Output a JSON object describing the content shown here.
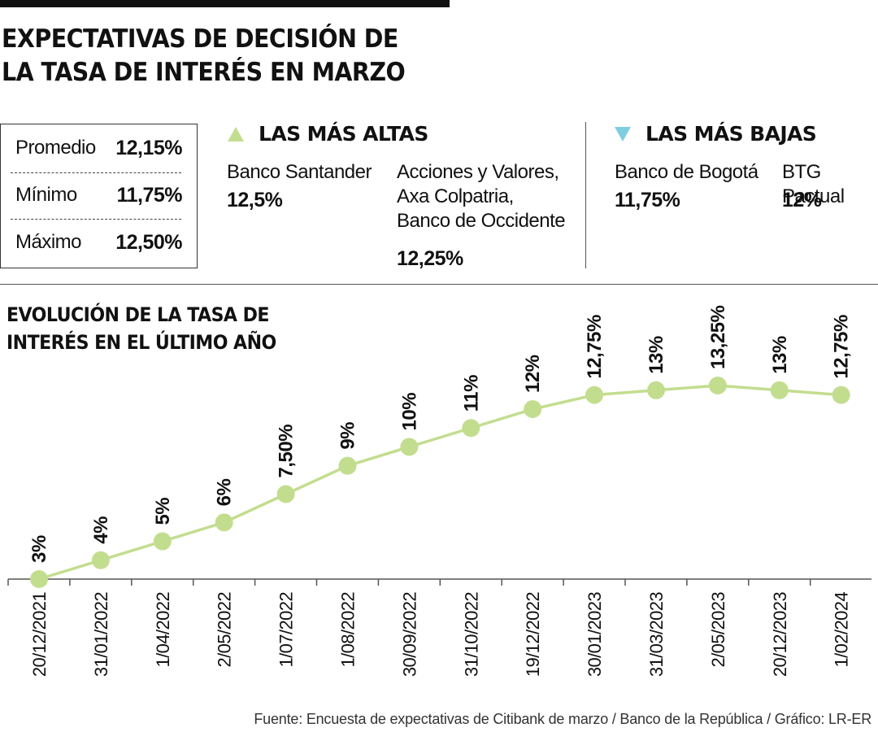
{
  "header": {
    "title_line1": "EXPECTATIVAS DE DECISIÓN DE",
    "title_line2": "LA TASA DE INTERÉS EN MARZO"
  },
  "stats": [
    {
      "label": "Promedio",
      "value": "12,15%"
    },
    {
      "label": "Mínimo",
      "value": "11,75%"
    },
    {
      "label": "Máximo",
      "value": "12,50%"
    }
  ],
  "highest": {
    "heading": "LAS MÁS ALTAS",
    "entries": [
      {
        "name_lines": [
          "Banco Santander"
        ],
        "value": "12,5%"
      },
      {
        "name_lines": [
          "Acciones y Valores,",
          "Axa Colpatria,",
          "Banco de Occidente"
        ],
        "value": "12,25%"
      }
    ]
  },
  "lowest": {
    "heading": "LAS MÁS BAJAS",
    "entries": [
      {
        "name_lines": [
          "Banco de Bogotá"
        ],
        "value": "11,75%"
      },
      {
        "name_lines": [
          "BTG Pactual"
        ],
        "value": "12%"
      }
    ]
  },
  "chart_title_line1": "EVOLUCIÓN DE LA TASA DE",
  "chart_title_line2": "INTERÉS EN EL ÚLTIMO AÑO",
  "footer": "Fuente: Encuesta de expectativas de Citibank de marzo / Banco de la República / Gráfico: LR-ER",
  "colors": {
    "line": "#c3dd8f",
    "up_marker": "#c3dd8f",
    "down_marker": "#7fcde0",
    "text": "#111111"
  },
  "chart_data": {
    "type": "line",
    "title": "EVOLUCIÓN DE LA TASA DE INTERÉS EN EL ÚLTIMO AÑO",
    "categories": [
      "20/12/2021",
      "31/01/2022",
      "1/04/2022",
      "2/05/2022",
      "1/07/2022",
      "1/08/2022",
      "30/09/2022",
      "31/10/2022",
      "19/12/2022",
      "30/01/2023",
      "31/03/2023",
      "2/05/2023",
      "20/12/2023",
      "1/02/2024"
    ],
    "values": [
      3,
      4,
      5,
      6,
      7.5,
      9,
      10,
      11,
      12,
      12.75,
      13,
      13.25,
      13,
      12.75
    ],
    "data_labels": [
      "3%",
      "4%",
      "5%",
      "6%",
      "7,50%",
      "9%",
      "10%",
      "11%",
      "12%",
      "12,75%",
      "13%",
      "13,25%",
      "13%",
      "12,75%"
    ],
    "ylim": [
      3,
      13.25
    ],
    "grid": false,
    "legend": "none"
  }
}
